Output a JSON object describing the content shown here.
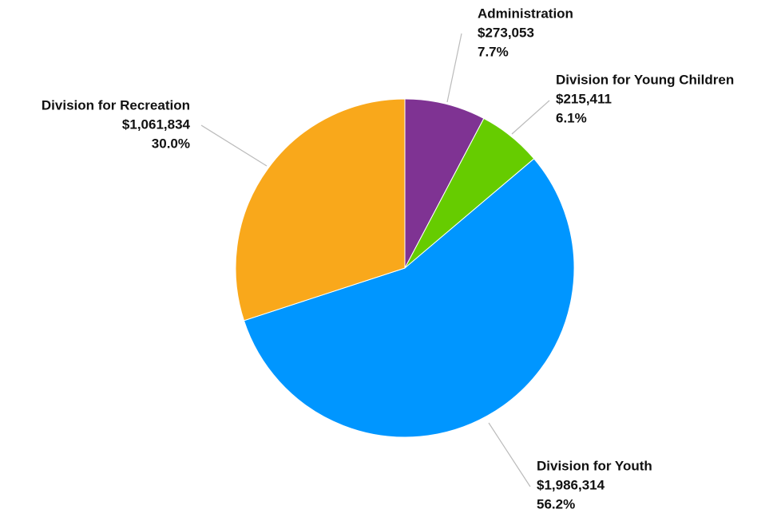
{
  "chart_data": {
    "type": "pie",
    "categories": [
      "Administration",
      "Division for Young Children",
      "Division for Youth",
      "Division for Recreation"
    ],
    "values": [
      273053,
      215411,
      1986314,
      1061834
    ],
    "value_labels": [
      "$273,053",
      "$215,411",
      "$1,986,314",
      "$1,061,834"
    ],
    "percents": [
      7.7,
      6.1,
      56.2,
      30.0
    ],
    "percent_labels": [
      "7.7%",
      "6.1%",
      "56.2%",
      "30.0%"
    ],
    "colors": [
      "#7f3393",
      "#66cc00",
      "#0096ff",
      "#f9a81b"
    ]
  }
}
